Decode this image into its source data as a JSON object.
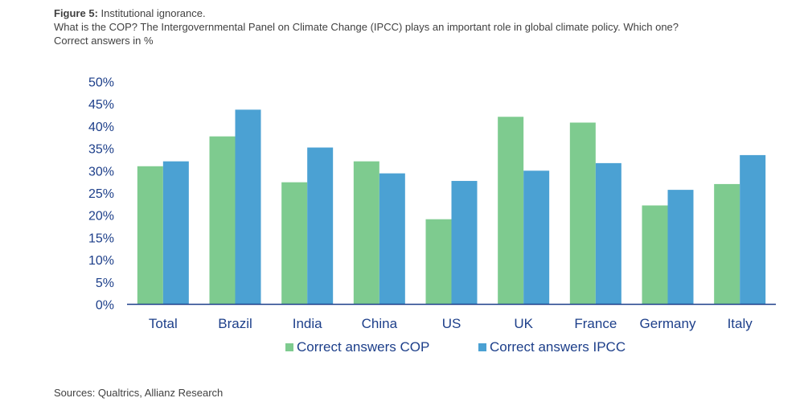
{
  "figure": {
    "label": "Figure 5:",
    "title": "Institutional ignorance.",
    "subtitle": "What is the COP? The Intergovernmental Panel on Climate Change (IPCC) plays an important role in global climate policy. Which one?",
    "units": "Correct answers in %"
  },
  "source": "Sources: Qualtrics, Allianz Research",
  "chart_data": {
    "type": "bar",
    "categories": [
      "Total",
      "Brazil",
      "India",
      "China",
      "US",
      "UK",
      "France",
      "Germany",
      "Italy"
    ],
    "series": [
      {
        "name": "Correct answers COP",
        "color": "#7ecb8f",
        "values": [
          31,
          37.7,
          27.4,
          32.1,
          19.1,
          42.1,
          40.8,
          22.2,
          27
        ]
      },
      {
        "name": "Correct answers IPCC",
        "color": "#4ba1d3",
        "values": [
          32.1,
          43.7,
          35.2,
          29.4,
          27.7,
          30,
          31.7,
          25.7,
          33.5
        ]
      }
    ],
    "ylim": [
      0,
      50
    ],
    "yticks": [
      "0%",
      "5%",
      "10%",
      "15%",
      "20%",
      "25%",
      "30%",
      "35%",
      "40%",
      "45%",
      "50%"
    ],
    "ytick_values": [
      0,
      5,
      10,
      15,
      20,
      25,
      30,
      35,
      40,
      45,
      50
    ],
    "legend_position": "bottom",
    "grid": false,
    "axis_color": "#1d3f8a"
  }
}
